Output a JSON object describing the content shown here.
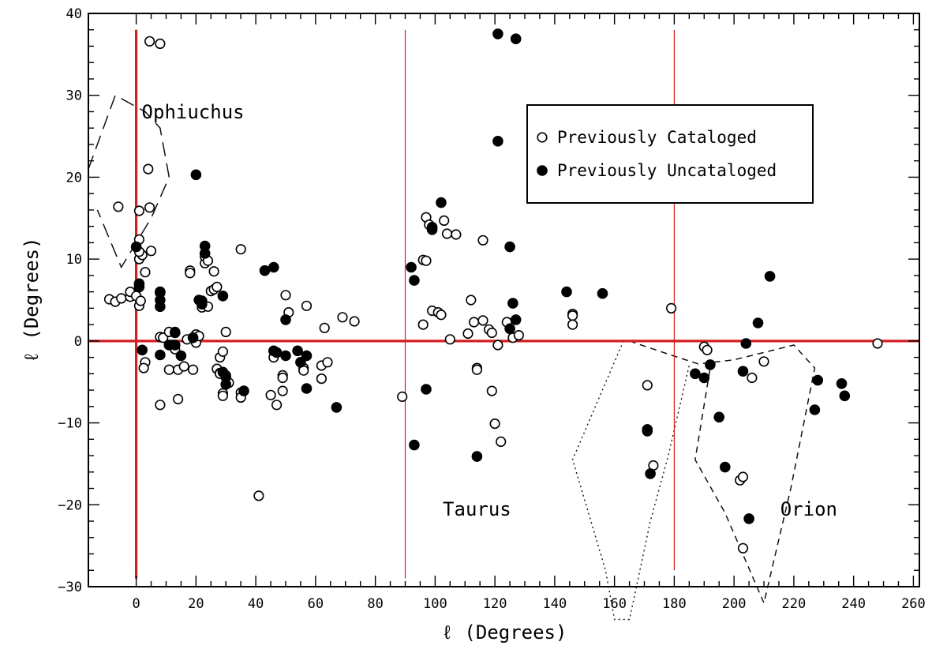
{
  "chart_data": {
    "type": "scatter",
    "title": "",
    "xlabel": "ℓ (Degrees)",
    "ylabel": "ℓ (Degrees)",
    "xlim": [
      -16,
      262
    ],
    "ylim": [
      -30,
      40
    ],
    "xticks": [
      0,
      20,
      40,
      60,
      80,
      100,
      120,
      140,
      160,
      180,
      200,
      220,
      240,
      260
    ],
    "yticks": [
      -30,
      -20,
      -10,
      0,
      10,
      20,
      30,
      40
    ],
    "x_tick_labels": [
      "0",
      "20",
      "40",
      "60",
      "80",
      "100",
      "120",
      "140",
      "160",
      "180",
      "200",
      "220",
      "240",
      "260"
    ],
    "y_tick_labels": [
      "−30",
      "−20",
      "−10",
      "0",
      "10",
      "20",
      "30",
      "40"
    ],
    "grid": false,
    "legend_position": "top-right",
    "series": [
      {
        "name": "Previously Cataloged",
        "marker": "open-circle",
        "points": [
          [
            -9,
            5.1
          ],
          [
            -7,
            4.8
          ],
          [
            -5,
            5.2
          ],
          [
            -2,
            5.4
          ],
          [
            -2,
            6
          ],
          [
            0,
            5.5
          ],
          [
            1,
            4.3
          ],
          [
            1.5,
            4.9
          ],
          [
            -6,
            16.4
          ],
          [
            1,
            15.9
          ],
          [
            4,
            21
          ],
          [
            4.5,
            16.3
          ],
          [
            4.5,
            36.6
          ],
          [
            8,
            36.3
          ],
          [
            1,
            10
          ],
          [
            2,
            10.5
          ],
          [
            3,
            8.4
          ],
          [
            5,
            11
          ],
          [
            1,
            10.9
          ],
          [
            1,
            12.4
          ],
          [
            3,
            -2.6
          ],
          [
            2.5,
            -3.3
          ],
          [
            8,
            0.5
          ],
          [
            8,
            -7.8
          ],
          [
            9,
            0.4
          ],
          [
            11,
            -3.5
          ],
          [
            11,
            1.1
          ],
          [
            12,
            -0.5
          ],
          [
            13,
            1.1
          ],
          [
            13,
            -1
          ],
          [
            14,
            -3.5
          ],
          [
            14,
            -7.1
          ],
          [
            16,
            -3.1
          ],
          [
            17,
            0.2
          ],
          [
            18,
            8.6
          ],
          [
            18,
            8.3
          ],
          [
            19,
            -3.5
          ],
          [
            20,
            0.8
          ],
          [
            20,
            -0.2
          ],
          [
            21,
            0.6
          ],
          [
            22,
            4.1
          ],
          [
            23,
            9.5
          ],
          [
            23,
            10.3
          ],
          [
            24,
            9.8
          ],
          [
            24,
            4.2
          ],
          [
            25,
            6.1
          ],
          [
            26,
            6.3
          ],
          [
            26,
            8.5
          ],
          [
            27,
            6.6
          ],
          [
            27,
            -3.4
          ],
          [
            28,
            -3.9
          ],
          [
            28,
            -2
          ],
          [
            28,
            -4
          ],
          [
            29,
            -1.3
          ],
          [
            29,
            -6.4
          ],
          [
            29,
            -6.7
          ],
          [
            30,
            1.1
          ],
          [
            30,
            -4.2
          ],
          [
            31,
            -5.1
          ],
          [
            35,
            11.2
          ],
          [
            35,
            -6.3
          ],
          [
            35,
            -6.9
          ],
          [
            41,
            -18.9
          ],
          [
            45,
            -6.6
          ],
          [
            46,
            -2
          ],
          [
            47,
            -7.8
          ],
          [
            49,
            -4.2
          ],
          [
            49,
            -4.5
          ],
          [
            49,
            -6.1
          ],
          [
            50,
            5.6
          ],
          [
            51,
            3.5
          ],
          [
            56,
            -3.3
          ],
          [
            56,
            -3.6
          ],
          [
            57,
            4.3
          ],
          [
            62,
            -4.6
          ],
          [
            62,
            -3
          ],
          [
            63,
            1.6
          ],
          [
            64,
            -2.6
          ],
          [
            69,
            2.9
          ],
          [
            73,
            2.4
          ],
          [
            89,
            -6.8
          ],
          [
            96,
            2
          ],
          [
            96,
            9.9
          ],
          [
            97,
            9.8
          ],
          [
            97,
            15.1
          ],
          [
            98,
            14.2
          ],
          [
            99,
            3.7
          ],
          [
            101,
            3.5
          ],
          [
            102,
            3.2
          ],
          [
            103,
            14.7
          ],
          [
            104,
            13.1
          ],
          [
            105,
            0.2
          ],
          [
            107,
            13
          ],
          [
            111,
            0.9
          ],
          [
            112,
            5
          ],
          [
            113,
            2.3
          ],
          [
            114,
            -3.3
          ],
          [
            114,
            -3.5
          ],
          [
            116,
            2.5
          ],
          [
            116,
            12.3
          ],
          [
            118,
            1.4
          ],
          [
            119,
            1
          ],
          [
            119,
            -6.1
          ],
          [
            120,
            -10.1
          ],
          [
            121,
            -0.5
          ],
          [
            122,
            -12.3
          ],
          [
            124,
            2.3
          ],
          [
            126,
            0.4
          ],
          [
            128,
            0.7
          ],
          [
            146,
            3.3
          ],
          [
            146,
            3.1
          ],
          [
            146,
            2
          ],
          [
            171,
            -5.4
          ],
          [
            171,
            -10.8
          ],
          [
            173,
            -15.2
          ],
          [
            179,
            4
          ],
          [
            190,
            -0.7
          ],
          [
            191,
            -1.1
          ],
          [
            202,
            -17
          ],
          [
            203,
            -16.6
          ],
          [
            203,
            -25.3
          ],
          [
            206,
            -4.5
          ],
          [
            210,
            -2.5
          ],
          [
            248,
            -0.3
          ]
        ]
      },
      {
        "name": "Previously Uncataloged",
        "marker": "filled-circle",
        "points": [
          [
            0,
            11.5
          ],
          [
            1,
            7
          ],
          [
            1,
            6.6
          ],
          [
            2,
            -1.1
          ],
          [
            8,
            5.9
          ],
          [
            8,
            6
          ],
          [
            8,
            5
          ],
          [
            8,
            4.2
          ],
          [
            8,
            -1.7
          ],
          [
            11,
            -0.5
          ],
          [
            13,
            -0.5
          ],
          [
            13,
            1
          ],
          [
            15,
            -1.8
          ],
          [
            19,
            0.4
          ],
          [
            20,
            20.3
          ],
          [
            21,
            5
          ],
          [
            22,
            4.9
          ],
          [
            22,
            4.5
          ],
          [
            23,
            11.6
          ],
          [
            23,
            10.7
          ],
          [
            29,
            5.5
          ],
          [
            29,
            -3.8
          ],
          [
            30,
            -4.4
          ],
          [
            30,
            -5.3
          ],
          [
            36,
            -6.1
          ],
          [
            43,
            8.6
          ],
          [
            46,
            9
          ],
          [
            46,
            -1.2
          ],
          [
            47,
            -1.4
          ],
          [
            50,
            2.6
          ],
          [
            50,
            -1.8
          ],
          [
            54,
            -1.2
          ],
          [
            55,
            -2.6
          ],
          [
            57,
            -5.8
          ],
          [
            57,
            -1.8
          ],
          [
            67,
            -8.1
          ],
          [
            92,
            9
          ],
          [
            93,
            7.4
          ],
          [
            93,
            -12.7
          ],
          [
            97,
            -5.9
          ],
          [
            99,
            13.9
          ],
          [
            99,
            13.6
          ],
          [
            102,
            16.9
          ],
          [
            114,
            -14.1
          ],
          [
            121,
            37.5
          ],
          [
            121,
            24.4
          ],
          [
            127,
            36.9
          ],
          [
            125,
            11.5
          ],
          [
            125,
            1.5
          ],
          [
            126,
            4.6
          ],
          [
            127,
            2.6
          ],
          [
            144,
            6
          ],
          [
            156,
            5.8
          ],
          [
            171,
            -10.8
          ],
          [
            171,
            -11
          ],
          [
            172,
            -16.2
          ],
          [
            187,
            -4
          ],
          [
            190,
            -4.5
          ],
          [
            192,
            -2.9
          ],
          [
            195,
            -9.3
          ],
          [
            197,
            -15.4
          ],
          [
            203,
            -3.7
          ],
          [
            204,
            -0.3
          ],
          [
            205,
            -21.7
          ],
          [
            208,
            2.2
          ],
          [
            212,
            7.9
          ],
          [
            227,
            -8.4
          ],
          [
            228,
            -4.8
          ],
          [
            236,
            -5.2
          ],
          [
            237,
            -6.7
          ]
        ]
      }
    ],
    "reference_lines": [
      {
        "axis": "x",
        "value": 0,
        "extent": [
          -29,
          38
        ],
        "color": "#d42020",
        "weight": "heavy"
      },
      {
        "axis": "y",
        "value": 0,
        "extent": [
          -16,
          262
        ],
        "color": "#d42020",
        "weight": "heavy"
      },
      {
        "axis": "x",
        "value": 90,
        "extent": [
          -29,
          38
        ],
        "color": "#d42020",
        "weight": "thin"
      },
      {
        "axis": "x",
        "value": 180,
        "extent": [
          -28,
          38
        ],
        "color": "#d42020",
        "weight": "thin"
      }
    ],
    "outlines": [
      {
        "style": "long-dash",
        "points": [
          [
            -16,
            21
          ],
          [
            -7,
            30
          ],
          [
            3,
            28
          ],
          [
            8,
            26
          ],
          [
            11,
            20
          ],
          [
            5,
            15
          ],
          [
            -5,
            9
          ],
          [
            -13,
            16
          ]
        ]
      },
      {
        "style": "dotted",
        "points": [
          [
            163,
            0
          ],
          [
            146,
            -14.5
          ],
          [
            157,
            -28
          ],
          [
            160,
            -34
          ],
          [
            165,
            -34
          ],
          [
            172,
            -22
          ],
          [
            178,
            -14
          ],
          [
            185,
            -3
          ]
        ]
      },
      {
        "style": "dash",
        "points": [
          [
            165,
            0
          ],
          [
            178,
            -1.6
          ],
          [
            188,
            -2.8
          ],
          [
            200,
            -2.3
          ],
          [
            220,
            -0.5
          ],
          [
            227,
            -3.3
          ],
          [
            219,
            -18
          ],
          [
            210,
            -32
          ],
          [
            197,
            -21
          ],
          [
            187,
            -14.5
          ],
          [
            192,
            -3.3
          ]
        ]
      }
    ],
    "annotations": [
      {
        "text": "Ophiuchus",
        "x": 19,
        "y": 27.2
      },
      {
        "text": "Taurus",
        "x": 114,
        "y": -21.3
      },
      {
        "text": "Orion",
        "x": 225,
        "y": -21.3
      }
    ]
  }
}
